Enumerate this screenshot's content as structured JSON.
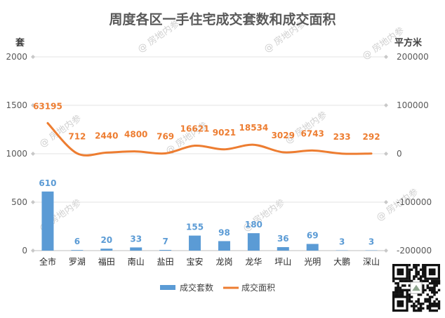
{
  "chart_data": {
    "type": "bar",
    "title": "周度各区一手住宅成交套数和成交面积",
    "y_left_label": "套",
    "y_right_label": "平方米",
    "y_left_ticks": [
      "0",
      "500",
      "1000",
      "1500",
      "2000"
    ],
    "y_right_ticks": [
      "-200000",
      "-100000",
      "0",
      "100000",
      "200000"
    ],
    "y_left_range": [
      0,
      2000
    ],
    "y_right_range": [
      -200000,
      200000
    ],
    "categories": [
      "全市",
      "罗湖",
      "福田",
      "南山",
      "盐田",
      "宝安",
      "龙岗",
      "龙华",
      "坪山",
      "光明",
      "大鹏",
      "深山"
    ],
    "series": [
      {
        "name": "成交套数",
        "type": "bar",
        "axis": "left",
        "color": "#5b9bd5",
        "values": [
          610,
          6,
          20,
          33,
          7,
          155,
          98,
          180,
          36,
          69,
          3,
          3
        ],
        "labels": [
          "610",
          "6",
          "20",
          "33",
          "7",
          "155",
          "98",
          "180",
          "36",
          "69",
          "3",
          "3"
        ]
      },
      {
        "name": "成交面积",
        "type": "line",
        "axis": "right",
        "color": "#ed7d31",
        "values": [
          63195,
          712,
          2440,
          4800,
          769,
          16621,
          9021,
          18534,
          3029,
          6743,
          233,
          292
        ],
        "labels": [
          "63195",
          "712",
          "2440",
          "4800",
          "769",
          "16621",
          "9021",
          "18534",
          "3029",
          "6743",
          "233",
          "292"
        ]
      }
    ],
    "legend": {
      "placement": "bottom"
    },
    "grid": true,
    "watermark": "@ 房地内参",
    "qr_code": true
  }
}
